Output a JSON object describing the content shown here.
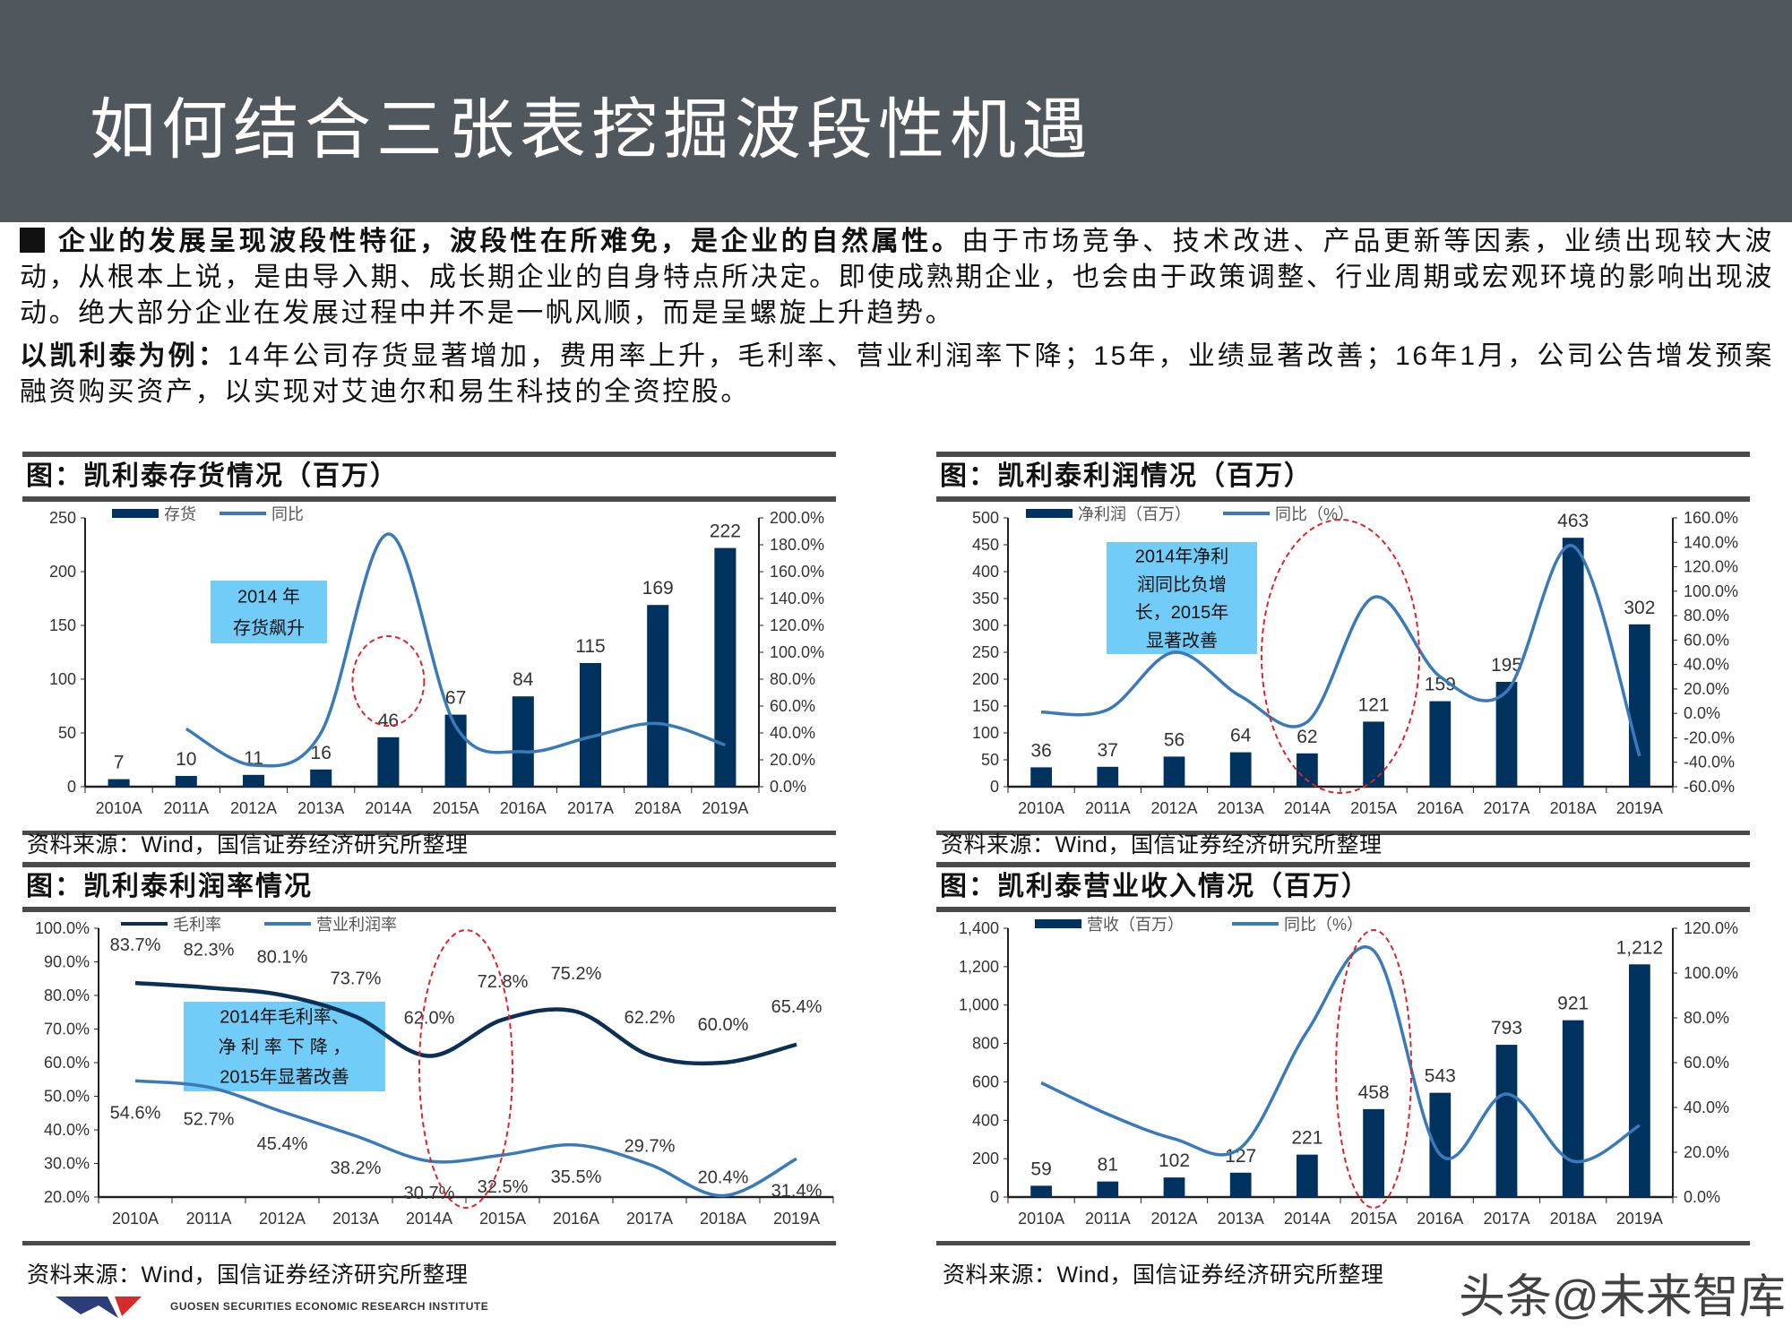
{
  "header": {
    "title": "如何结合三张表挖掘波段性机遇"
  },
  "body": {
    "p1_bold": "企业的发展呈现波段性特征，波段性在所难免，是企业的自然属性。",
    "p1_rest": "由于市场竞争、技术改进、产品更新等因素，业绩出现较大波动，从根本上说，是由导入期、成长期企业的自身特点所决定。即使成熟期企业，也会由于政策调整、行业周期或宏观环境的影响出现波动。绝大部分企业在发展过程中并不是一帆风顺，而是呈螺旋上升趋势。",
    "p2_bold": "以凯利泰为例：",
    "p2_rest": "14年公司存货显著增加，费用率上升，毛利率、营业利润率下降；15年，业绩显著改善；16年1月，公司公告增发预案融资购买资产，以实现对艾迪尔和易生科技的全资控股。"
  },
  "panels": [
    {
      "title": "图：凯利泰存货情况（百万）",
      "source": "资料来源：Wind，国信证券经济研究所整理",
      "annotation": [
        "2014  年",
        "存货飙升"
      ]
    },
    {
      "title": "图：凯利泰利润情况（百万）",
      "source": "资料来源：Wind，国信证券经济研究所整理",
      "annotation": [
        "2014年净利",
        "润同比负增",
        "长，2015年",
        "显著改善"
      ]
    },
    {
      "title": "图：凯利泰利润率情况",
      "source": "资料来源：Wind，国信证券经济研究所整理",
      "annotation": [
        "2014年毛利率、",
        "净 利 率 下 降 ，",
        "2015年显著改善"
      ]
    },
    {
      "title": "图：凯利泰营业收入情况（百万）",
      "source": "资料来源：Wind，国信证券经济研究所整理",
      "annotation": []
    }
  ],
  "colors": {
    "bar": "#00325f",
    "line": "#3a7ab8",
    "dark_line": "#0b2f55",
    "annotation_box": "#72ccf8",
    "highlight_ellipse": "#d9262b",
    "header": "#50575d"
  },
  "chart_data": [
    {
      "type": "bar+line",
      "categories": [
        "2010A",
        "2011A",
        "2012A",
        "2013A",
        "2014A",
        "2015A",
        "2016A",
        "2017A",
        "2018A",
        "2019A"
      ],
      "bars": {
        "name": "存货",
        "values": [
          7,
          10,
          11,
          16,
          46,
          67,
          84,
          115,
          169,
          222
        ],
        "labels": [
          "7",
          "10",
          "11",
          "16",
          "46",
          "67",
          "84",
          "115",
          "169",
          "222"
        ]
      },
      "line": {
        "name": "同比",
        "values": [
          null,
          43,
          16,
          40,
          188,
          45,
          26,
          37,
          47,
          31
        ]
      },
      "ylim": [
        0,
        250
      ],
      "ystep": 50,
      "y2lim": [
        0,
        200
      ],
      "y2step": 20,
      "y2format": "percent",
      "legend": "top-left",
      "highlight": "2014A"
    },
    {
      "type": "bar+line",
      "categories": [
        "2010A",
        "2011A",
        "2012A",
        "2013A",
        "2014A",
        "2015A",
        "2016A",
        "2017A",
        "2018A",
        "2019A"
      ],
      "bars": {
        "name": "净利润（百万）",
        "values": [
          36,
          37,
          56,
          64,
          62,
          121,
          159,
          195,
          463,
          302
        ],
        "labels": [
          "36",
          "37",
          "56",
          "64",
          "62",
          "121",
          "159",
          "195",
          "463",
          "302"
        ]
      },
      "line": {
        "name": "同比（%）",
        "values": [
          1,
          3,
          50,
          14,
          -7,
          95,
          30,
          18,
          137,
          -35
        ]
      },
      "ylim": [
        0,
        500
      ],
      "ystep": 50,
      "y2lim": [
        -60,
        160
      ],
      "y2step": 20,
      "y2format": "percent",
      "legend": "top-left",
      "highlight": "2014A-2015A"
    },
    {
      "type": "line",
      "categories": [
        "2010A",
        "2011A",
        "2012A",
        "2013A",
        "2014A",
        "2015A",
        "2016A",
        "2017A",
        "2018A",
        "2019A"
      ],
      "series": [
        {
          "name": "毛利率",
          "values": [
            83.7,
            82.3,
            80.1,
            73.7,
            62.0,
            72.8,
            75.2,
            62.2,
            60.0,
            65.4
          ],
          "labels": [
            "83.7%",
            "82.3%",
            "80.1%",
            "73.7%",
            "62.0%",
            "72.8%",
            "75.2%",
            "62.2%",
            "60.0%",
            "65.4%"
          ]
        },
        {
          "name": "营业利润率",
          "values": [
            54.6,
            52.7,
            45.4,
            38.2,
            30.7,
            32.5,
            35.5,
            29.7,
            20.4,
            31.4
          ],
          "labels": [
            "54.6%",
            "52.7%",
            "45.4%",
            "38.2%",
            "30.7%",
            "32.5%",
            "35.5%",
            "29.7%",
            "20.4%",
            "31.4%"
          ]
        }
      ],
      "ylim": [
        20,
        100
      ],
      "ystep": 10,
      "yformat": "percent",
      "legend": "top-left",
      "highlight": "2014A-2015A"
    },
    {
      "type": "bar+line",
      "categories": [
        "2010A",
        "2011A",
        "2012A",
        "2013A",
        "2014A",
        "2015A",
        "2016A",
        "2017A",
        "2018A",
        "2019A"
      ],
      "bars": {
        "name": "营收（百万）",
        "values": [
          59,
          81,
          102,
          127,
          221,
          458,
          543,
          793,
          921,
          1212
        ],
        "labels": [
          "59",
          "81",
          "102",
          "127",
          "221",
          "458",
          "543",
          "793",
          "921",
          "1,212"
        ]
      },
      "line": {
        "name": "同比（%）",
        "values": [
          51,
          37,
          26,
          22,
          74,
          110,
          19,
          46,
          16,
          32
        ]
      },
      "ylim": [
        0,
        1400
      ],
      "ystep": 200,
      "yformat": "thousands",
      "y2lim": [
        0,
        120
      ],
      "y2step": 20,
      "y2format": "percent",
      "legend": "top-left",
      "highlight": "2015A"
    }
  ],
  "footer": {
    "logo_text": "GUOSEN SECURITIES ECONOMIC RESEARCH INSTITUTE",
    "watermark": "头条@未来智库"
  }
}
